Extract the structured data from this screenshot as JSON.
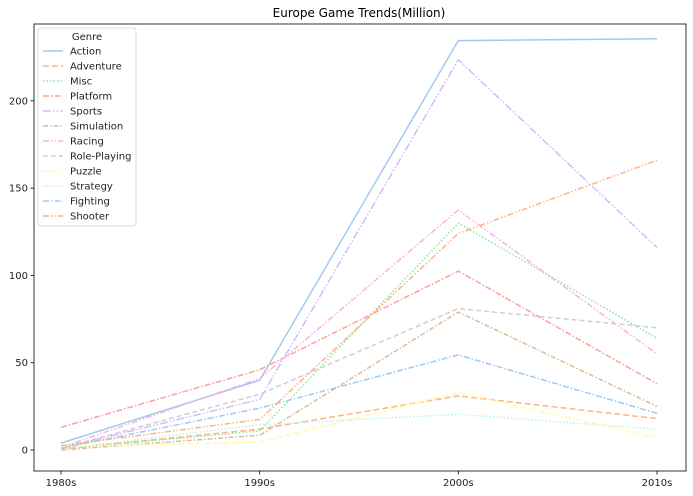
{
  "chart_data": {
    "type": "line",
    "title": "Europe Game Trends(Million)",
    "xlabel": "",
    "ylabel": "",
    "categories": [
      "1980s",
      "1990s",
      "2000s",
      "2010s"
    ],
    "ylim": [
      -12,
      244
    ],
    "yticks": [
      0,
      50,
      100,
      150,
      200
    ],
    "grid": false,
    "legend": {
      "title": "Genre",
      "placement": "top-left"
    },
    "series": [
      {
        "name": "Action",
        "values": [
          4.0,
          40.0,
          234.5,
          235.5
        ],
        "color": "#a1c9f4",
        "dash": ""
      },
      {
        "name": "Adventure",
        "values": [
          0.5,
          12.0,
          31.0,
          18.0
        ],
        "color": "#ffb482",
        "dash": "6,3"
      },
      {
        "name": "Misc",
        "values": [
          0.5,
          11.0,
          130.0,
          64.0
        ],
        "color": "#8de5a1",
        "dash": "1.5,2"
      },
      {
        "name": "Platform",
        "values": [
          13.0,
          46.0,
          102.5,
          38.0
        ],
        "color": "#ff9f9b",
        "dash": "6,2,1.5,2"
      },
      {
        "name": "Sports",
        "values": [
          1.0,
          29.0,
          223.5,
          116.0
        ],
        "color": "#d0bbff",
        "dash": "8,2,1.5,2,1.5,2"
      },
      {
        "name": "Simulation",
        "values": [
          0.0,
          8.5,
          79.0,
          25.0
        ],
        "color": "#debb9b",
        "dash": "5,2,1.5,2"
      },
      {
        "name": "Racing",
        "values": [
          1.5,
          41.0,
          137.5,
          55.0
        ],
        "color": "#fab0e4",
        "dash": "6,2,1.5,2,1.5,2"
      },
      {
        "name": "Role-Playing",
        "values": [
          1.0,
          32.0,
          81.0,
          70.0
        ],
        "color": "#cfcfcf",
        "dash": "5,3"
      },
      {
        "name": "Puzzle",
        "values": [
          2.0,
          4.5,
          33.0,
          7.0
        ],
        "color": "#fffea3",
        "dash": "6,3"
      },
      {
        "name": "Strategy",
        "values": [
          0.5,
          14.5,
          20.5,
          12.0
        ],
        "color": "#b9f2f0",
        "dash": "1.5,2"
      },
      {
        "name": "Fighting",
        "values": [
          1.0,
          24.0,
          54.5,
          21.0
        ],
        "color": "#a1c9f4",
        "dash": "6,2,1.5,2"
      },
      {
        "name": "Shooter",
        "values": [
          2.5,
          17.5,
          124.0,
          166.0
        ],
        "color": "#ffb482",
        "dash": "6,2,1.5,2,1.5,2"
      }
    ]
  }
}
